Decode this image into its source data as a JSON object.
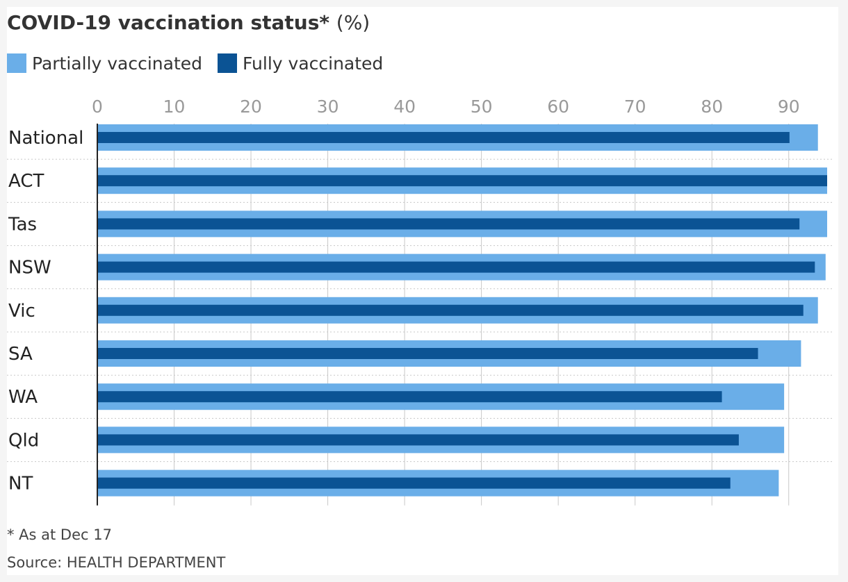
{
  "colors": {
    "partial": "#6aaee8",
    "full": "#0b5394",
    "grid": "#c8c8c8",
    "tick": "#999999",
    "category": "#222222"
  },
  "footnote": "* As at Dec 17",
  "source": "Source: HEALTH DEPARTMENT",
  "chart_data": {
    "type": "bar",
    "orientation": "horizontal",
    "title": "COVID-19 vaccination status* (%)",
    "title_main": "COVID-19 vaccination status*",
    "title_unit": "(%)",
    "xlim": [
      0,
      95
    ],
    "x_ticks": [
      0,
      10,
      20,
      30,
      40,
      50,
      60,
      70,
      80,
      90
    ],
    "categories": [
      "National",
      "ACT",
      "Tas",
      "NSW",
      "Vic",
      "SA",
      "WA",
      "Qld",
      "NT"
    ],
    "series": [
      {
        "name": "Partially vaccinated",
        "values": [
          93.8,
          95.0,
          95.0,
          94.8,
          93.8,
          91.6,
          89.4,
          89.4,
          88.7
        ]
      },
      {
        "name": "Fully vaccinated",
        "values": [
          90.1,
          95.0,
          91.4,
          93.4,
          91.9,
          86.0,
          81.3,
          83.5,
          82.4
        ]
      }
    ],
    "grid": true,
    "legend_position": "top-left"
  }
}
